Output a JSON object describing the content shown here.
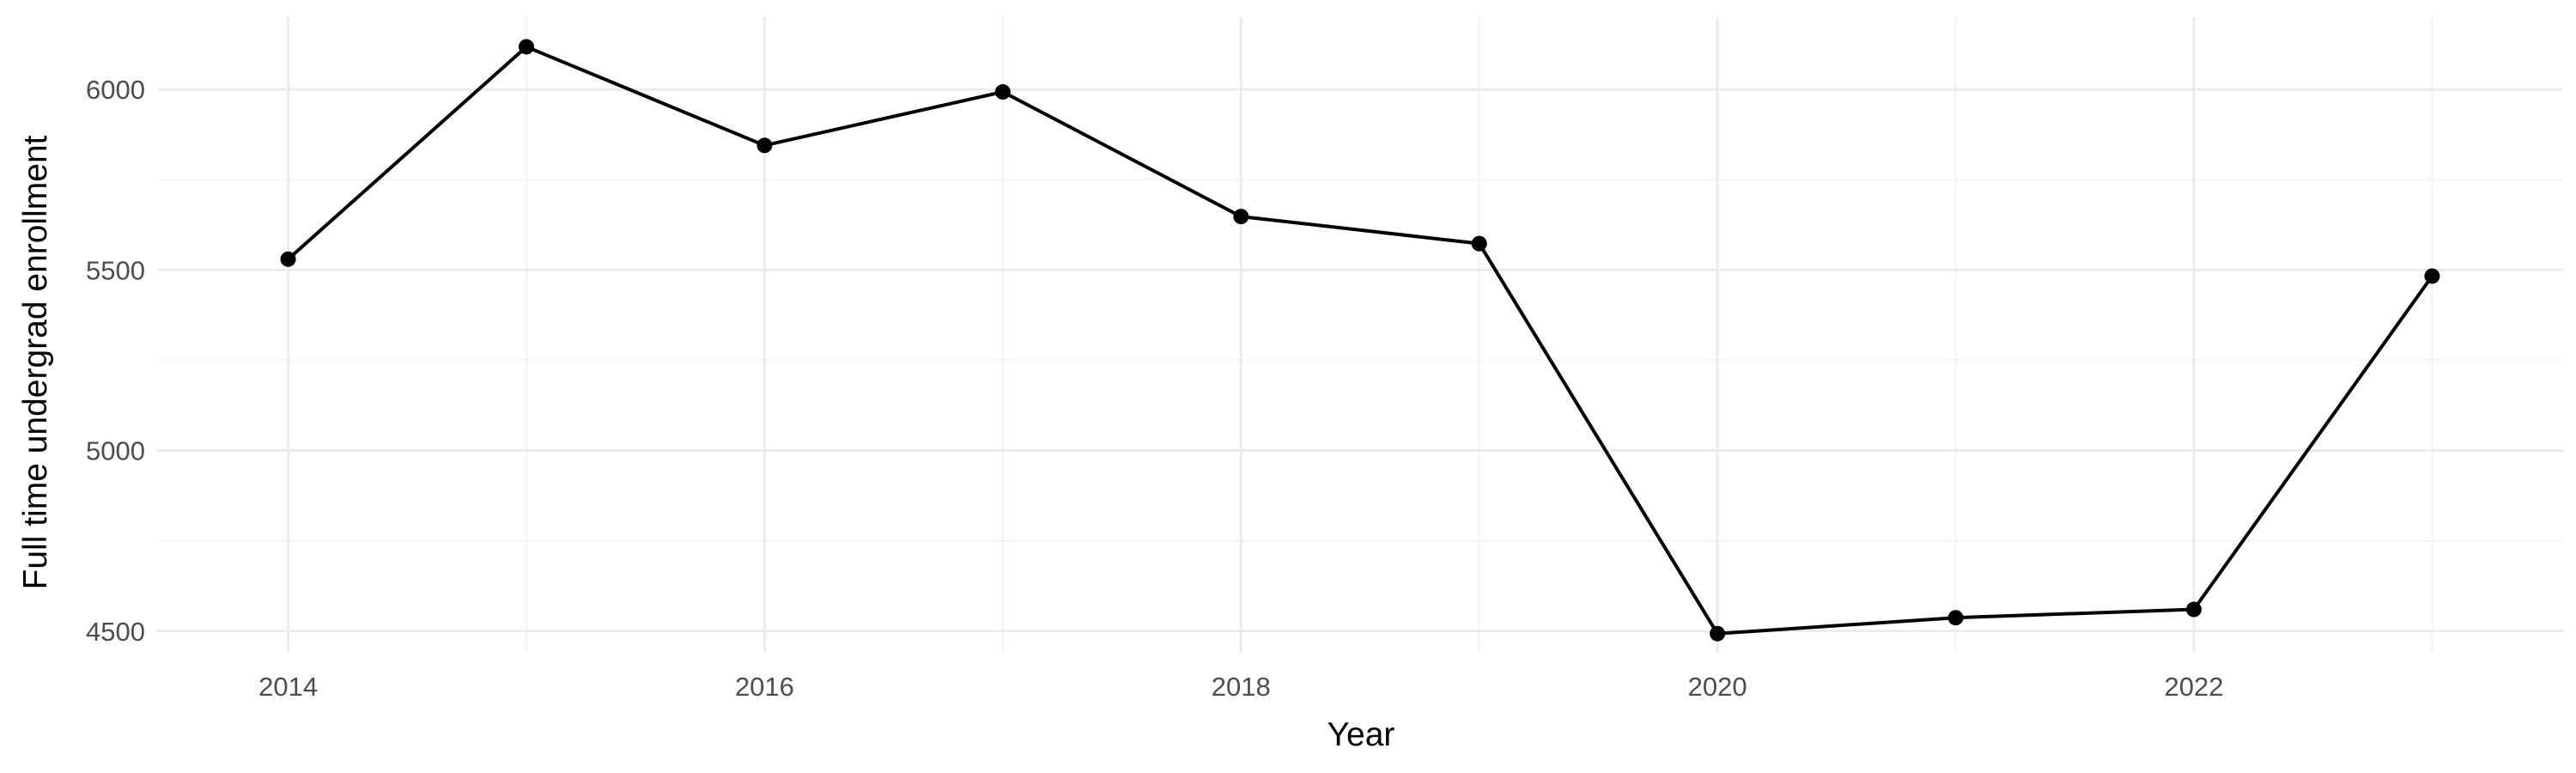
{
  "chart_data": {
    "type": "line",
    "title": "",
    "xlabel": "Year",
    "ylabel": "Full time undergrad enrollment",
    "x": [
      2014,
      2015,
      2016,
      2017,
      2018,
      2019,
      2020,
      2021,
      2022,
      2023
    ],
    "series": [
      {
        "values": [
          5530,
          6118,
          5845,
          5993,
          5648,
          5573,
          4493,
          4537,
          4560,
          5483
        ]
      }
    ],
    "xlim": [
      2013.45,
      2023.55
    ],
    "ylim": [
      4440,
      6200
    ],
    "x_ticks": [
      2014,
      2016,
      2018,
      2020,
      2022
    ],
    "x_tick_labels": [
      "2014",
      "2016",
      "2018",
      "2020",
      "2022"
    ],
    "y_ticks": [
      4500,
      5000,
      5500,
      6000
    ],
    "y_tick_labels": [
      "4500",
      "5000",
      "5500",
      "6000"
    ],
    "grid": true,
    "legend": "none",
    "colors": {
      "line": "#000000",
      "point": "#000000",
      "grid": "#ebebeb",
      "tick_text": "#4d4d4d",
      "background": "#ffffff"
    }
  }
}
